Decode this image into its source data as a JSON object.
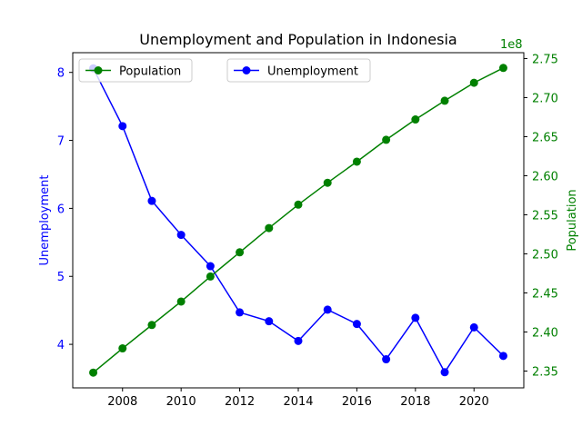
{
  "chart_data": {
    "type": "line",
    "title": "Unemployment and Population in Indonesia",
    "xlabel": "",
    "x": [
      2007,
      2008,
      2009,
      2010,
      2011,
      2012,
      2013,
      2014,
      2015,
      2016,
      2017,
      2018,
      2019,
      2020,
      2021
    ],
    "x_ticks": [
      "2008",
      "2010",
      "2012",
      "2014",
      "2016",
      "2018",
      "2020"
    ],
    "xlim": [
      2006.3,
      2021.7
    ],
    "grid": false,
    "series": [
      {
        "name": "Unemployment",
        "axis": "left",
        "color": "#0000ff",
        "marker": "circle",
        "values": [
          8.06,
          7.21,
          6.11,
          5.61,
          5.15,
          4.47,
          4.34,
          4.05,
          4.51,
          4.3,
          3.78,
          4.39,
          3.59,
          4.25,
          3.83
        ]
      },
      {
        "name": "Population",
        "axis": "right",
        "color": "#008000",
        "marker": "circle",
        "values": [
          234800000,
          237900000,
          240900000,
          243900000,
          247100000,
          250200000,
          253300000,
          256300000,
          259100000,
          261800000,
          264600000,
          267200000,
          269600000,
          271900000,
          273800000
        ]
      }
    ],
    "y_left": {
      "label": "Unemployment",
      "color": "#0000ff",
      "ylim": [
        3.36,
        8.29
      ],
      "ticks": [
        "4",
        "5",
        "6",
        "7",
        "8"
      ]
    },
    "y_right": {
      "label": "Population",
      "color": "#008000",
      "ylim": [
        232850000,
        275750000
      ],
      "offset_text": "1e8",
      "ticks": [
        "2.35",
        "2.40",
        "2.45",
        "2.50",
        "2.55",
        "2.60",
        "2.65",
        "2.70",
        "2.75"
      ]
    },
    "legends": [
      {
        "entries": [
          "Population"
        ],
        "placement": "upper-left"
      },
      {
        "entries": [
          "Unemployment"
        ],
        "placement": "upper-center"
      }
    ]
  }
}
